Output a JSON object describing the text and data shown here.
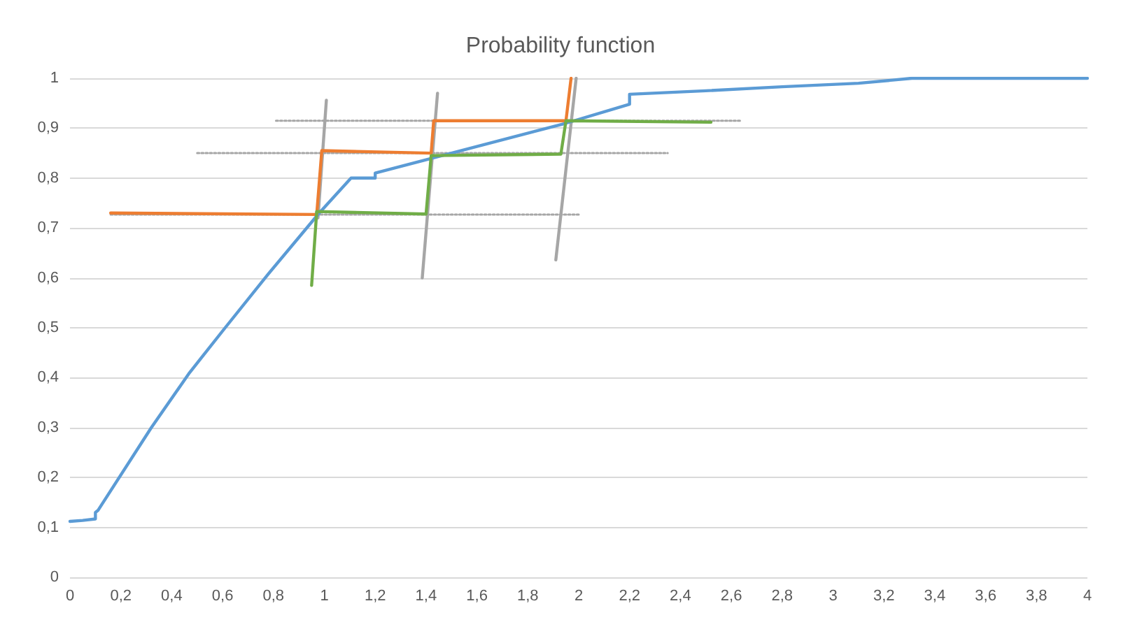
{
  "chart_data": {
    "type": "line",
    "title": "Probability function",
    "grid": "y",
    "marker": "none",
    "xlim": [
      0,
      4
    ],
    "ylim": [
      0,
      1
    ],
    "xticks": [
      0,
      {
        "value": 0.2,
        "label": "0,2"
      },
      {
        "value": 0.4,
        "label": "0,4"
      },
      {
        "value": 0.6,
        "label": "0,6"
      },
      {
        "value": 0.8,
        "label": "0,8"
      },
      1,
      {
        "value": 1.2,
        "label": "1,2"
      },
      {
        "value": 1.4,
        "label": "1,4"
      },
      {
        "value": 1.6,
        "label": "1,6"
      },
      {
        "value": 1.8,
        "label": "1,8"
      },
      2,
      {
        "value": 2.2,
        "label": "2,2"
      },
      {
        "value": 2.4,
        "label": "2,4"
      },
      {
        "value": 2.6,
        "label": "2,6"
      },
      {
        "value": 2.8,
        "label": "2,8"
      },
      3,
      {
        "value": 3.2,
        "label": "3,2"
      },
      {
        "value": 3.4,
        "label": "3,4"
      },
      {
        "value": 3.6,
        "label": "3,6"
      },
      {
        "value": 3.8,
        "label": "3,8"
      },
      4
    ],
    "yticks": [
      0,
      {
        "value": 0.1,
        "label": "0,1"
      },
      {
        "value": 0.2,
        "label": "0,2"
      },
      {
        "value": 0.3,
        "label": "0,3"
      },
      {
        "value": 0.4,
        "label": "0,4"
      },
      {
        "value": 0.5,
        "label": "0,5"
      },
      {
        "value": 0.6,
        "label": "0,6"
      },
      {
        "value": 0.7,
        "label": "0,7"
      },
      {
        "value": 0.8,
        "label": "0,8"
      },
      {
        "value": 0.9,
        "label": "0,9"
      },
      1
    ],
    "series": [
      {
        "color": "#a6a6a6",
        "line_style": "dotted",
        "x": [
          0.16,
          2.0
        ],
        "values": [
          0.727,
          0.727
        ]
      },
      {
        "color": "#a6a6a6",
        "line_style": "dotted",
        "x": [
          0.5,
          2.35
        ],
        "values": [
          0.85,
          0.85
        ]
      },
      {
        "color": "#a6a6a6",
        "line_style": "dotted",
        "x": [
          0.81,
          2.64
        ],
        "values": [
          0.915,
          0.915
        ]
      },
      {
        "color": "#a6a6a6",
        "line_style": "solid",
        "x": [
          0.975,
          1.008
        ],
        "values": [
          0.72,
          0.956
        ]
      },
      {
        "color": "#a6a6a6",
        "line_style": "solid",
        "x": [
          1.385,
          1.445
        ],
        "values": [
          0.6,
          0.97
        ]
      },
      {
        "color": "#a6a6a6",
        "line_style": "solid",
        "x": [
          1.91,
          1.99
        ],
        "values": [
          0.636,
          1.0
        ]
      },
      {
        "color": "#5b9bd5",
        "line_style": "solid",
        "x": [
          0,
          0.05,
          0.1,
          0.1,
          0.11,
          0.32,
          0.47,
          0.61,
          0.78,
          0.98,
          1.105,
          1.2,
          1.2,
          1.95,
          2.2,
          2.2,
          2.5,
          2.8,
          3.1,
          3.31,
          4
        ],
        "values": [
          0.112,
          0.114,
          0.117,
          0.13,
          0.134,
          0.3,
          0.41,
          0.5,
          0.608,
          0.73,
          0.8,
          0.8,
          0.81,
          0.91,
          0.948,
          0.968,
          0.975,
          0.983,
          0.99,
          1.0,
          1.0
        ]
      },
      {
        "color": "#ed7d31",
        "line_style": "solid",
        "x": [
          0.16,
          0.97,
          0.99,
          1.42,
          1.43,
          1.95,
          1.97
        ],
        "values": [
          0.73,
          0.727,
          0.855,
          0.85,
          0.915,
          0.915,
          1.0
        ]
      },
      {
        "color": "#70ad47",
        "line_style": "solid",
        "x": [
          0.95,
          0.97,
          1.4,
          1.42,
          1.93,
          1.95,
          2.52
        ],
        "values": [
          0.585,
          0.733,
          0.728,
          0.845,
          0.848,
          0.915,
          0.912
        ]
      }
    ]
  }
}
